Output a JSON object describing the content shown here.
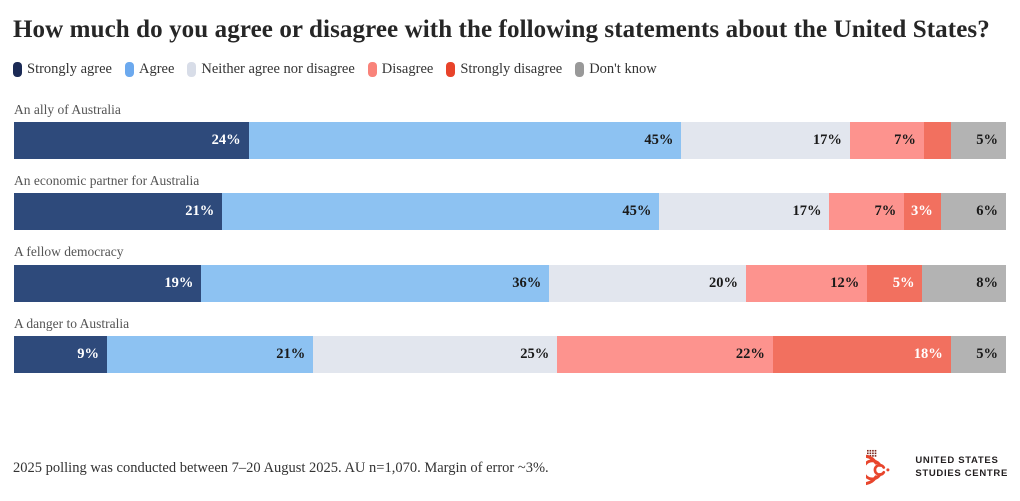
{
  "chart_data": {
    "type": "bar",
    "orientation": "horizontal-stacked",
    "title": "How much do you agree or disagree with the following statements about the United States?",
    "legend_position": "top",
    "xlim": [
      0,
      100
    ],
    "categories": [
      "An ally of Australia",
      "An economic partner for Australia",
      "A fellow democracy",
      "A danger to Australia"
    ],
    "series": [
      {
        "name": "Strongly agree",
        "color": "#2e4a7b",
        "legend_color": "#1b2a55",
        "label_color": "#ffffff",
        "values": [
          24,
          21,
          19,
          9
        ]
      },
      {
        "name": "Agree",
        "color": "#8dc2f2",
        "legend_color": "#6ca9ee",
        "label_color": "#1a1a1a",
        "values": [
          45,
          45,
          36,
          21
        ]
      },
      {
        "name": "Neither agree nor disagree",
        "color": "#e2e6ee",
        "legend_color": "#d8dde8",
        "label_color": "#1a1a1a",
        "values": [
          17,
          17,
          20,
          25
        ]
      },
      {
        "name": "Disagree",
        "color": "#fd938e",
        "legend_color": "#f9837a",
        "label_color": "#1a1a1a",
        "values": [
          7,
          7,
          12,
          22
        ]
      },
      {
        "name": "Strongly disagree",
        "color": "#f2705f",
        "legend_color": "#e8432a",
        "label_color": "#ffffff",
        "values": [
          2,
          3,
          5,
          18
        ]
      },
      {
        "name": "Don't know",
        "color": "#b3b3b3",
        "legend_color": "#999999",
        "label_color": "#1a1a1a",
        "values": [
          5,
          6,
          8,
          5
        ]
      }
    ],
    "segment_labels": [
      [
        "24%",
        "45%",
        "17%",
        "7%",
        "",
        "5%"
      ],
      [
        "21%",
        "45%",
        "17%",
        "7%",
        "3%",
        "6%"
      ],
      [
        "19%",
        "36%",
        "20%",
        "12%",
        "5%",
        "8%"
      ],
      [
        "9%",
        "21%",
        "25%",
        "22%",
        "18%",
        "5%"
      ]
    ]
  },
  "footer": {
    "note": "2025 polling was conducted between 7–20 August 2025. AU n=1,070. Margin of error ~3%."
  },
  "logo": {
    "line1": "UNITED STATES",
    "line2": "STUDIES CENTRE",
    "icon": "ussc-spiral-logo",
    "icon_color": "#e8452c",
    "text_color": "#231f20"
  }
}
